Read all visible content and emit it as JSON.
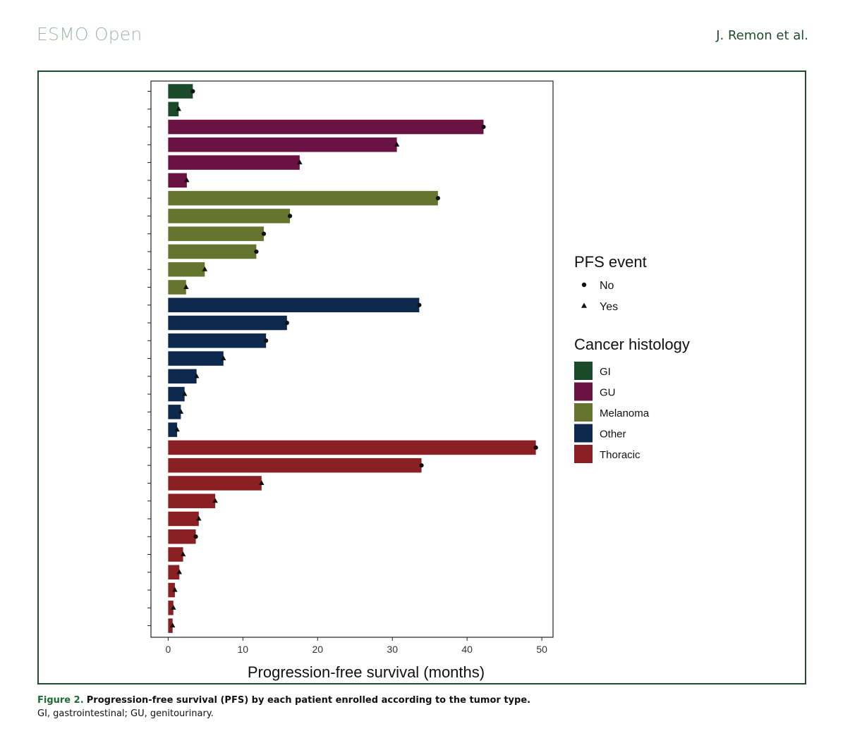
{
  "header": {
    "journal": "ESMO Open",
    "authors": "J. Remon et al."
  },
  "caption": {
    "label": "Figure 2.",
    "title": "Progression-free survival (PFS) by each patient enrolled according to the tumor type.",
    "note": "GI, gastrointestinal; GU, genitourinary."
  },
  "colors": {
    "GI": "#1a4a2a",
    "GU": "#6a1343",
    "Melanoma": "#65752f",
    "Other": "#0d2a4e",
    "Thoracic": "#8a1f24"
  },
  "chart_data": {
    "type": "bar",
    "orientation": "horizontal",
    "xlabel": "Progression-free survival (months)",
    "xlim": [
      -2.3,
      51.5
    ],
    "xticks": [
      0,
      10,
      20,
      30,
      40,
      50
    ],
    "legend_placement": "right",
    "legend": {
      "event_title": "PFS event",
      "event_entries": [
        {
          "label": "No",
          "marker": "circle"
        },
        {
          "label": "Yes",
          "marker": "triangle"
        }
      ],
      "histology_title": "Cancer histology",
      "histology_entries": [
        "GI",
        "GU",
        "Melanoma",
        "Other",
        "Thoracic"
      ]
    },
    "bars": [
      {
        "histology": "GI",
        "value": 3.3,
        "event": "No"
      },
      {
        "histology": "GI",
        "value": 1.4,
        "event": "Yes"
      },
      {
        "histology": "GU",
        "value": 42.2,
        "event": "No"
      },
      {
        "histology": "GU",
        "value": 30.6,
        "event": "Yes"
      },
      {
        "histology": "GU",
        "value": 17.6,
        "event": "Yes"
      },
      {
        "histology": "GU",
        "value": 2.5,
        "event": "Yes"
      },
      {
        "histology": "Melanoma",
        "value": 36.1,
        "event": "No"
      },
      {
        "histology": "Melanoma",
        "value": 16.3,
        "event": "No"
      },
      {
        "histology": "Melanoma",
        "value": 12.8,
        "event": "No"
      },
      {
        "histology": "Melanoma",
        "value": 11.8,
        "event": "No"
      },
      {
        "histology": "Melanoma",
        "value": 4.9,
        "event": "Yes"
      },
      {
        "histology": "Melanoma",
        "value": 2.4,
        "event": "Yes"
      },
      {
        "histology": "Other",
        "value": 33.6,
        "event": "No"
      },
      {
        "histology": "Other",
        "value": 15.9,
        "event": "No"
      },
      {
        "histology": "Other",
        "value": 13.1,
        "event": "No"
      },
      {
        "histology": "Other",
        "value": 7.4,
        "event": "Yes"
      },
      {
        "histology": "Other",
        "value": 3.8,
        "event": "Yes"
      },
      {
        "histology": "Other",
        "value": 2.2,
        "event": "Yes"
      },
      {
        "histology": "Other",
        "value": 1.7,
        "event": "Yes"
      },
      {
        "histology": "Other",
        "value": 1.2,
        "event": "Yes"
      },
      {
        "histology": "Thoracic",
        "value": 49.2,
        "event": "No"
      },
      {
        "histology": "Thoracic",
        "value": 33.9,
        "event": "No"
      },
      {
        "histology": "Thoracic",
        "value": 12.5,
        "event": "Yes"
      },
      {
        "histology": "Thoracic",
        "value": 6.3,
        "event": "Yes"
      },
      {
        "histology": "Thoracic",
        "value": 4.1,
        "event": "Yes"
      },
      {
        "histology": "Thoracic",
        "value": 3.7,
        "event": "No"
      },
      {
        "histology": "Thoracic",
        "value": 2.0,
        "event": "Yes"
      },
      {
        "histology": "Thoracic",
        "value": 1.5,
        "event": "Yes"
      },
      {
        "histology": "Thoracic",
        "value": 0.9,
        "event": "Yes"
      },
      {
        "histology": "Thoracic",
        "value": 0.7,
        "event": "Yes"
      },
      {
        "histology": "Thoracic",
        "value": 0.6,
        "event": "Yes"
      }
    ]
  }
}
